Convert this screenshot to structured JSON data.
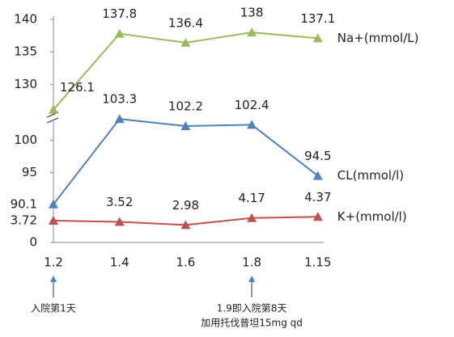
{
  "chart_data": {
    "type": "line",
    "categories": [
      "1.2",
      "1.4",
      "1.6",
      "1.8",
      "1.15"
    ],
    "series": [
      {
        "name": "Na+(mmol/L)",
        "color": "#9bbb59",
        "values": [
          126.1,
          137.8,
          136.4,
          138,
          137.1
        ],
        "ylim": [
          125,
          140
        ],
        "yticks": [
          130,
          135,
          140
        ]
      },
      {
        "name": "CL(mmol/l)",
        "color": "#4f81bd",
        "values": [
          90.1,
          103.3,
          102.2,
          102.4,
          94.5
        ],
        "ylim": [
          90,
          103.5
        ],
        "yticks": [
          90.1,
          95,
          100
        ]
      },
      {
        "name": "K+(mmol/l)",
        "color": "#c0504d",
        "values": [
          3.72,
          3.52,
          2.98,
          4.17,
          4.37
        ],
        "ylim": [
          0,
          5
        ],
        "yticks": [
          0,
          3.72
        ]
      }
    ],
    "annotations": [
      {
        "lines": [
          "入院第1天"
        ]
      },
      {
        "lines": [
          "1.9即入院第8天",
          "加用托伐普坦15mg qd"
        ]
      }
    ]
  }
}
